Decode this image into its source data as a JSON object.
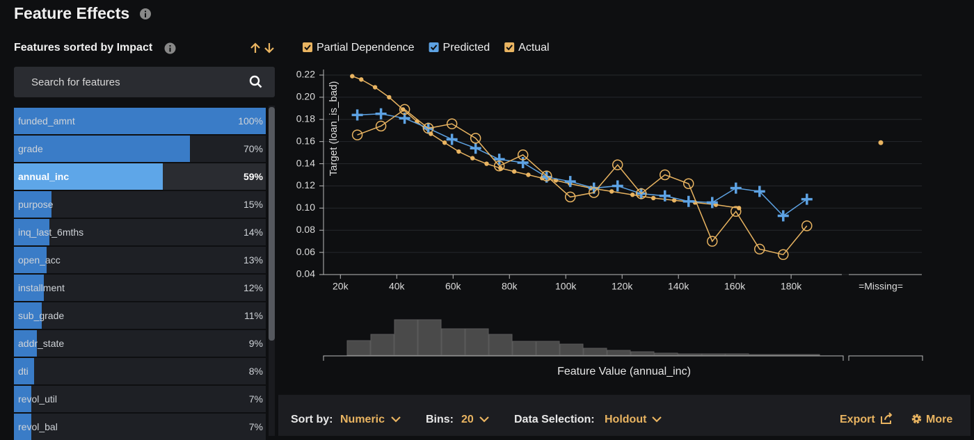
{
  "header": {
    "title": "Feature Effects"
  },
  "sidebar": {
    "title": "Features sorted by Impact",
    "search_placeholder": "Search for features",
    "selected": 2,
    "features": [
      {
        "name": "funded_amnt",
        "impact": 100,
        "label": "100%"
      },
      {
        "name": "grade",
        "impact": 70,
        "label": "70%"
      },
      {
        "name": "annual_inc",
        "impact": 59,
        "label": "59%"
      },
      {
        "name": "purpose",
        "impact": 15,
        "label": "15%"
      },
      {
        "name": "inq_last_6mths",
        "impact": 14,
        "label": "14%"
      },
      {
        "name": "open_acc",
        "impact": 13,
        "label": "13%"
      },
      {
        "name": "installment",
        "impact": 12,
        "label": "12%"
      },
      {
        "name": "sub_grade",
        "impact": 11,
        "label": "11%"
      },
      {
        "name": "addr_state",
        "impact": 9,
        "label": "9%"
      },
      {
        "name": "dti",
        "impact": 8,
        "label": "8%"
      },
      {
        "name": "revol_util",
        "impact": 7,
        "label": "7%"
      },
      {
        "name": "revol_bal",
        "impact": 7,
        "label": "7%"
      }
    ]
  },
  "chart_data": {
    "type": "line",
    "y_label": "Target (loan_is_bad)",
    "x_label": "Feature Value (annual_inc)",
    "xlim": [
      14000,
      198000
    ],
    "ylim": [
      0.04,
      0.22
    ],
    "xticks": [
      {
        "value": 20000,
        "label": "20k"
      },
      {
        "value": 40000,
        "label": "40k"
      },
      {
        "value": 60000,
        "label": "60k"
      },
      {
        "value": 80000,
        "label": "80k"
      },
      {
        "value": 100000,
        "label": "100k"
      },
      {
        "value": 120000,
        "label": "120k"
      },
      {
        "value": 140000,
        "label": "140k"
      },
      {
        "value": 160000,
        "label": "160k"
      },
      {
        "value": 180000,
        "label": "180k"
      }
    ],
    "yticks": [
      0.04,
      0.06,
      0.08,
      {
        "value": 0.1,
        "label": "0.10"
      },
      0.12,
      0.14,
      0.16,
      0.18,
      {
        "value": 0.2,
        "label": "0.20"
      },
      0.22
    ],
    "grid": true,
    "series": [
      {
        "name": "Partial Dependence",
        "color": "#e9b461",
        "marker": "dot",
        "x": [
          24200,
          27400,
          32300,
          37300,
          42200,
          47200,
          52100,
          57000,
          62000,
          66900,
          71900,
          76800,
          81700,
          86700,
          91600,
          96500,
          101500,
          108900,
          116300,
          123700,
          131100,
          138500,
          145900,
          153300,
          161500
        ],
        "values": [
          0.219,
          0.216,
          0.209,
          0.2,
          0.189,
          0.178,
          0.167,
          0.159,
          0.151,
          0.145,
          0.14,
          0.136,
          0.133,
          0.13,
          0.127,
          0.125,
          0.122,
          0.118,
          0.115,
          0.112,
          0.109,
          0.107,
          0.105,
          0.103,
          0.1
        ]
      },
      {
        "name": "Predicted",
        "color": "#5da2e3",
        "marker": "plus",
        "x": [
          26000,
          34400,
          42800,
          51200,
          59600,
          68000,
          76400,
          84800,
          93200,
          101600,
          110000,
          118400,
          126800,
          135200,
          143600,
          152000,
          160400,
          168800,
          177200,
          185600
        ],
        "values": [
          0.184,
          0.185,
          0.181,
          0.172,
          0.162,
          0.154,
          0.144,
          0.141,
          0.128,
          0.124,
          0.118,
          0.12,
          0.113,
          0.111,
          0.106,
          0.105,
          0.118,
          0.115,
          0.093,
          0.108
        ]
      },
      {
        "name": "Actual",
        "color": "#e9b461",
        "marker": "circle",
        "x": [
          26000,
          34400,
          42800,
          51200,
          59600,
          68000,
          76400,
          84800,
          93200,
          101600,
          110000,
          118400,
          126800,
          135200,
          143600,
          152000,
          160400,
          168800,
          177200,
          185600
        ],
        "values": [
          0.166,
          0.174,
          0.189,
          0.172,
          0.176,
          0.163,
          0.138,
          0.148,
          0.129,
          0.11,
          0.114,
          0.139,
          0.113,
          0.13,
          0.122,
          0.07,
          0.097,
          0.063,
          0.058,
          0.084
        ]
      }
    ],
    "missing": {
      "label": "=Missing=",
      "partial_dependence": 0.159
    },
    "histogram": {
      "values": [
        21,
        30,
        51,
        51,
        38,
        38,
        30,
        20,
        20,
        16,
        10,
        7,
        5,
        3,
        2,
        2,
        2,
        1,
        1,
        1
      ]
    }
  },
  "controls": {
    "sort_label": "Sort by:",
    "sort_value": "Numeric",
    "bins_label": "Bins:",
    "bins_value": 20,
    "selection_label": "Data Selection:",
    "selection_value": "Holdout",
    "export": "Export",
    "more": "More"
  }
}
